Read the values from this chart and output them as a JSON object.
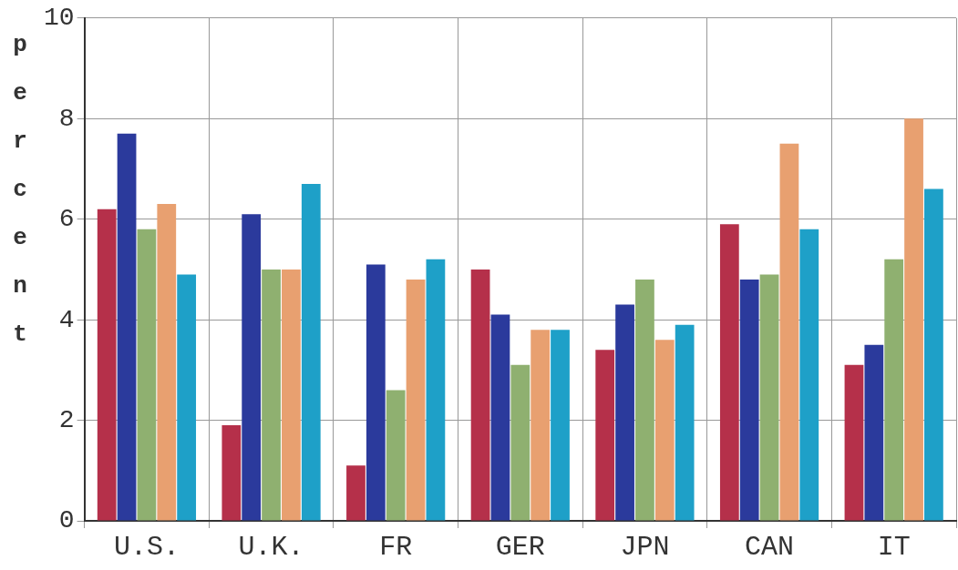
{
  "chart_data": {
    "type": "bar",
    "ylabel": "percent",
    "categories": [
      "U.S.",
      "U.K.",
      "FR",
      "GER",
      "JPN",
      "CAN",
      "IT"
    ],
    "series": [
      {
        "color": "#b5304a",
        "values": [
          6.2,
          1.9,
          1.1,
          5.0,
          3.4,
          5.9,
          3.1
        ]
      },
      {
        "color": "#2b3a9c",
        "values": [
          7.7,
          6.1,
          5.1,
          4.1,
          4.3,
          4.8,
          3.5
        ]
      },
      {
        "color": "#8fb070",
        "values": [
          5.8,
          5.0,
          2.6,
          3.1,
          4.8,
          4.9,
          5.2
        ]
      },
      {
        "color": "#e8a070",
        "values": [
          6.3,
          5.0,
          4.8,
          3.8,
          3.6,
          7.5,
          8.0
        ]
      },
      {
        "color": "#1ea0c8",
        "values": [
          4.9,
          6.7,
          5.2,
          3.8,
          3.9,
          5.8,
          6.6
        ]
      }
    ],
    "ylim": [
      0,
      10
    ],
    "yticks": [
      0,
      2,
      4,
      6,
      8,
      10
    ],
    "grid": true,
    "legend": false
  }
}
